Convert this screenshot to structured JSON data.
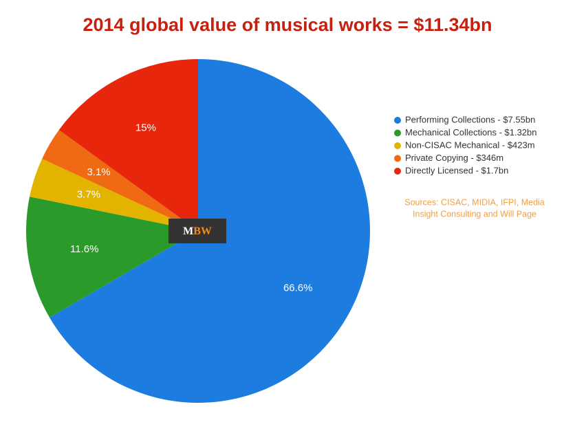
{
  "chart_data": {
    "type": "pie",
    "title": "2014 global value of musical works = $11.34bn",
    "series": [
      {
        "name": "Performing Collections - $7.55bn",
        "color": "#1c7ce0"
      },
      {
        "name": "Mechanical Collections - $1.32bn",
        "color": "#2a9a2a"
      },
      {
        "name": "Non-CISAC Mechanical - $423m",
        "color": "#e2b400"
      },
      {
        "name": "Private Copying - $346m",
        "color": "#ef6a12"
      },
      {
        "name": "Directly Licensed - $1.7bn",
        "color": "#e8260c"
      }
    ],
    "values": [
      66.6,
      11.6,
      3.7,
      3.1,
      15
    ],
    "value_labels": [
      "66.6%",
      "11.6%",
      "3.7%",
      "3.1%",
      "15%"
    ],
    "legend": "right",
    "annotation": [
      "Sources: CISAC, MIDIA, IFPI, Media",
      "Insight Consulting and Will Page"
    ]
  },
  "logo": [
    "M",
    "BW"
  ]
}
